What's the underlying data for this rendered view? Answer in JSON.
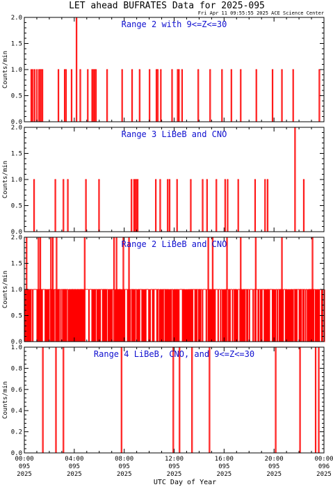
{
  "title": "LET ahead BUFRATES Data for 2025-095",
  "timestamp": "Fri Apr 11 09:55:55 2025 ACE Science Center",
  "xlabel": "UTC Day of Year",
  "colors": {
    "series": "#ff0000",
    "label": "#1010d0",
    "axes": "#000000"
  },
  "chart_data": [
    {
      "type": "line",
      "label": "Range 2 with 9<=Z<=30",
      "ylabel": "Counts/min",
      "xlim": [
        0,
        24
      ],
      "ylim": [
        0,
        2.0
      ],
      "yticks": [
        "0.0",
        "0.5",
        "1.0",
        "1.5",
        "2.0"
      ],
      "yticks_values": [
        0,
        0.5,
        1.0,
        1.5,
        2.0
      ],
      "spikes": [
        [
          0.52,
          1
        ],
        [
          0.65,
          1
        ],
        [
          0.8,
          1
        ],
        [
          0.98,
          1
        ],
        [
          1.15,
          1
        ],
        [
          1.27,
          1
        ],
        [
          1.35,
          1
        ],
        [
          1.42,
          1
        ],
        [
          2.7,
          1
        ],
        [
          3.2,
          1
        ],
        [
          3.3,
          1
        ],
        [
          3.75,
          1
        ],
        [
          4.15,
          2
        ],
        [
          4.45,
          1
        ],
        [
          5.05,
          1
        ],
        [
          5.4,
          1
        ],
        [
          5.5,
          1
        ],
        [
          5.62,
          1
        ],
        [
          5.7,
          1
        ],
        [
          6.6,
          1
        ],
        [
          7.8,
          1
        ],
        [
          8.6,
          1
        ],
        [
          9.2,
          1
        ],
        [
          10.0,
          1
        ],
        [
          10.55,
          1
        ],
        [
          10.65,
          1
        ],
        [
          10.9,
          1
        ],
        [
          11.8,
          1
        ],
        [
          12.25,
          1
        ],
        [
          12.35,
          1
        ],
        [
          12.6,
          1
        ],
        [
          13.9,
          1
        ],
        [
          14.85,
          1
        ],
        [
          15.8,
          1
        ],
        [
          16.55,
          1
        ],
        [
          17.3,
          1
        ],
        [
          18.55,
          1
        ],
        [
          19.85,
          1
        ],
        [
          20.6,
          1
        ],
        [
          21.5,
          1
        ],
        [
          23.6,
          1
        ]
      ]
    },
    {
      "type": "line",
      "label": "Range 3 LiBeB and CNO",
      "ylabel": "Counts/min",
      "xlim": [
        0,
        24
      ],
      "ylim": [
        0,
        2.0
      ],
      "yticks": [
        "0.0",
        "0.5",
        "1.0",
        "1.5",
        "2.0"
      ],
      "yticks_values": [
        0,
        0.5,
        1.0,
        1.5,
        2.0
      ],
      "spikes": [
        [
          0.75,
          1
        ],
        [
          2.45,
          1
        ],
        [
          3.1,
          1
        ],
        [
          3.45,
          1
        ],
        [
          4.9,
          1
        ],
        [
          5.95,
          1
        ],
        [
          8.55,
          1
        ],
        [
          8.75,
          1
        ],
        [
          8.85,
          1
        ],
        [
          8.95,
          1
        ],
        [
          9.05,
          1
        ],
        [
          10.5,
          1
        ],
        [
          10.85,
          1
        ],
        [
          11.45,
          1
        ],
        [
          11.6,
          1
        ],
        [
          12.2,
          1
        ],
        [
          13.3,
          1
        ],
        [
          14.25,
          1
        ],
        [
          14.6,
          1
        ],
        [
          15.35,
          1
        ],
        [
          16.05,
          1
        ],
        [
          16.25,
          1
        ],
        [
          17.1,
          1
        ],
        [
          18.45,
          1
        ],
        [
          19.25,
          1
        ],
        [
          19.45,
          1
        ],
        [
          21.65,
          2
        ],
        [
          22.35,
          1
        ]
      ]
    },
    {
      "type": "line",
      "label": "Range 2 LiBeB and CNO",
      "ylabel": "Counts/min",
      "xlim": [
        0,
        24
      ],
      "ylim": [
        0,
        2.0
      ],
      "yticks": [
        "0.0",
        "0.5",
        "1.0",
        "1.5",
        "2.0"
      ],
      "yticks_values": [
        0,
        0.5,
        1.0,
        1.5,
        2.0
      ],
      "baseline_density": 4.0,
      "spikes": [
        [
          0.15,
          2
        ],
        [
          1.1,
          2
        ],
        [
          1.25,
          2
        ],
        [
          2.1,
          2
        ],
        [
          2.25,
          2
        ],
        [
          2.55,
          2
        ],
        [
          4.8,
          2
        ],
        [
          7.15,
          2
        ],
        [
          7.35,
          2
        ],
        [
          7.9,
          2
        ],
        [
          8.35,
          2
        ],
        [
          14.7,
          2
        ],
        [
          15.05,
          2
        ],
        [
          16.2,
          2
        ],
        [
          17.3,
          2
        ],
        [
          18.5,
          2
        ],
        [
          20.6,
          2
        ],
        [
          23.05,
          2
        ]
      ]
    },
    {
      "type": "line",
      "label": "Range 4 LiBeB, CNO, and 9<=Z<=30",
      "ylabel": "Counts/min",
      "xlim": [
        0,
        24
      ],
      "ylim": [
        0,
        1.0
      ],
      "yticks": [
        "0.0",
        "0.2",
        "0.4",
        "0.6",
        "0.8",
        "1.0"
      ],
      "yticks_values": [
        0,
        0.2,
        0.4,
        0.6,
        0.8,
        1.0
      ],
      "spikes": [
        [
          1.45,
          1
        ],
        [
          2.5,
          1
        ],
        [
          3.1,
          1
        ],
        [
          7.75,
          1
        ],
        [
          11.9,
          1
        ],
        [
          12.4,
          1
        ],
        [
          13.4,
          1
        ],
        [
          14.8,
          1
        ],
        [
          20.1,
          1
        ],
        [
          22.05,
          1
        ],
        [
          23.3,
          1
        ],
        [
          23.55,
          1
        ]
      ]
    }
  ],
  "xticks": [
    {
      "hour": 0,
      "time": "00:00",
      "doy": "095",
      "year": "2025"
    },
    {
      "hour": 4,
      "time": "04:00",
      "doy": "095",
      "year": "2025"
    },
    {
      "hour": 8,
      "time": "08:00",
      "doy": "095",
      "year": "2025"
    },
    {
      "hour": 12,
      "time": "12:00",
      "doy": "095",
      "year": "2025"
    },
    {
      "hour": 16,
      "time": "16:00",
      "doy": "095",
      "year": "2025"
    },
    {
      "hour": 20,
      "time": "20:00",
      "doy": "095",
      "year": "2025"
    },
    {
      "hour": 24,
      "time": "00:00",
      "doy": "096",
      "year": "2025"
    }
  ]
}
